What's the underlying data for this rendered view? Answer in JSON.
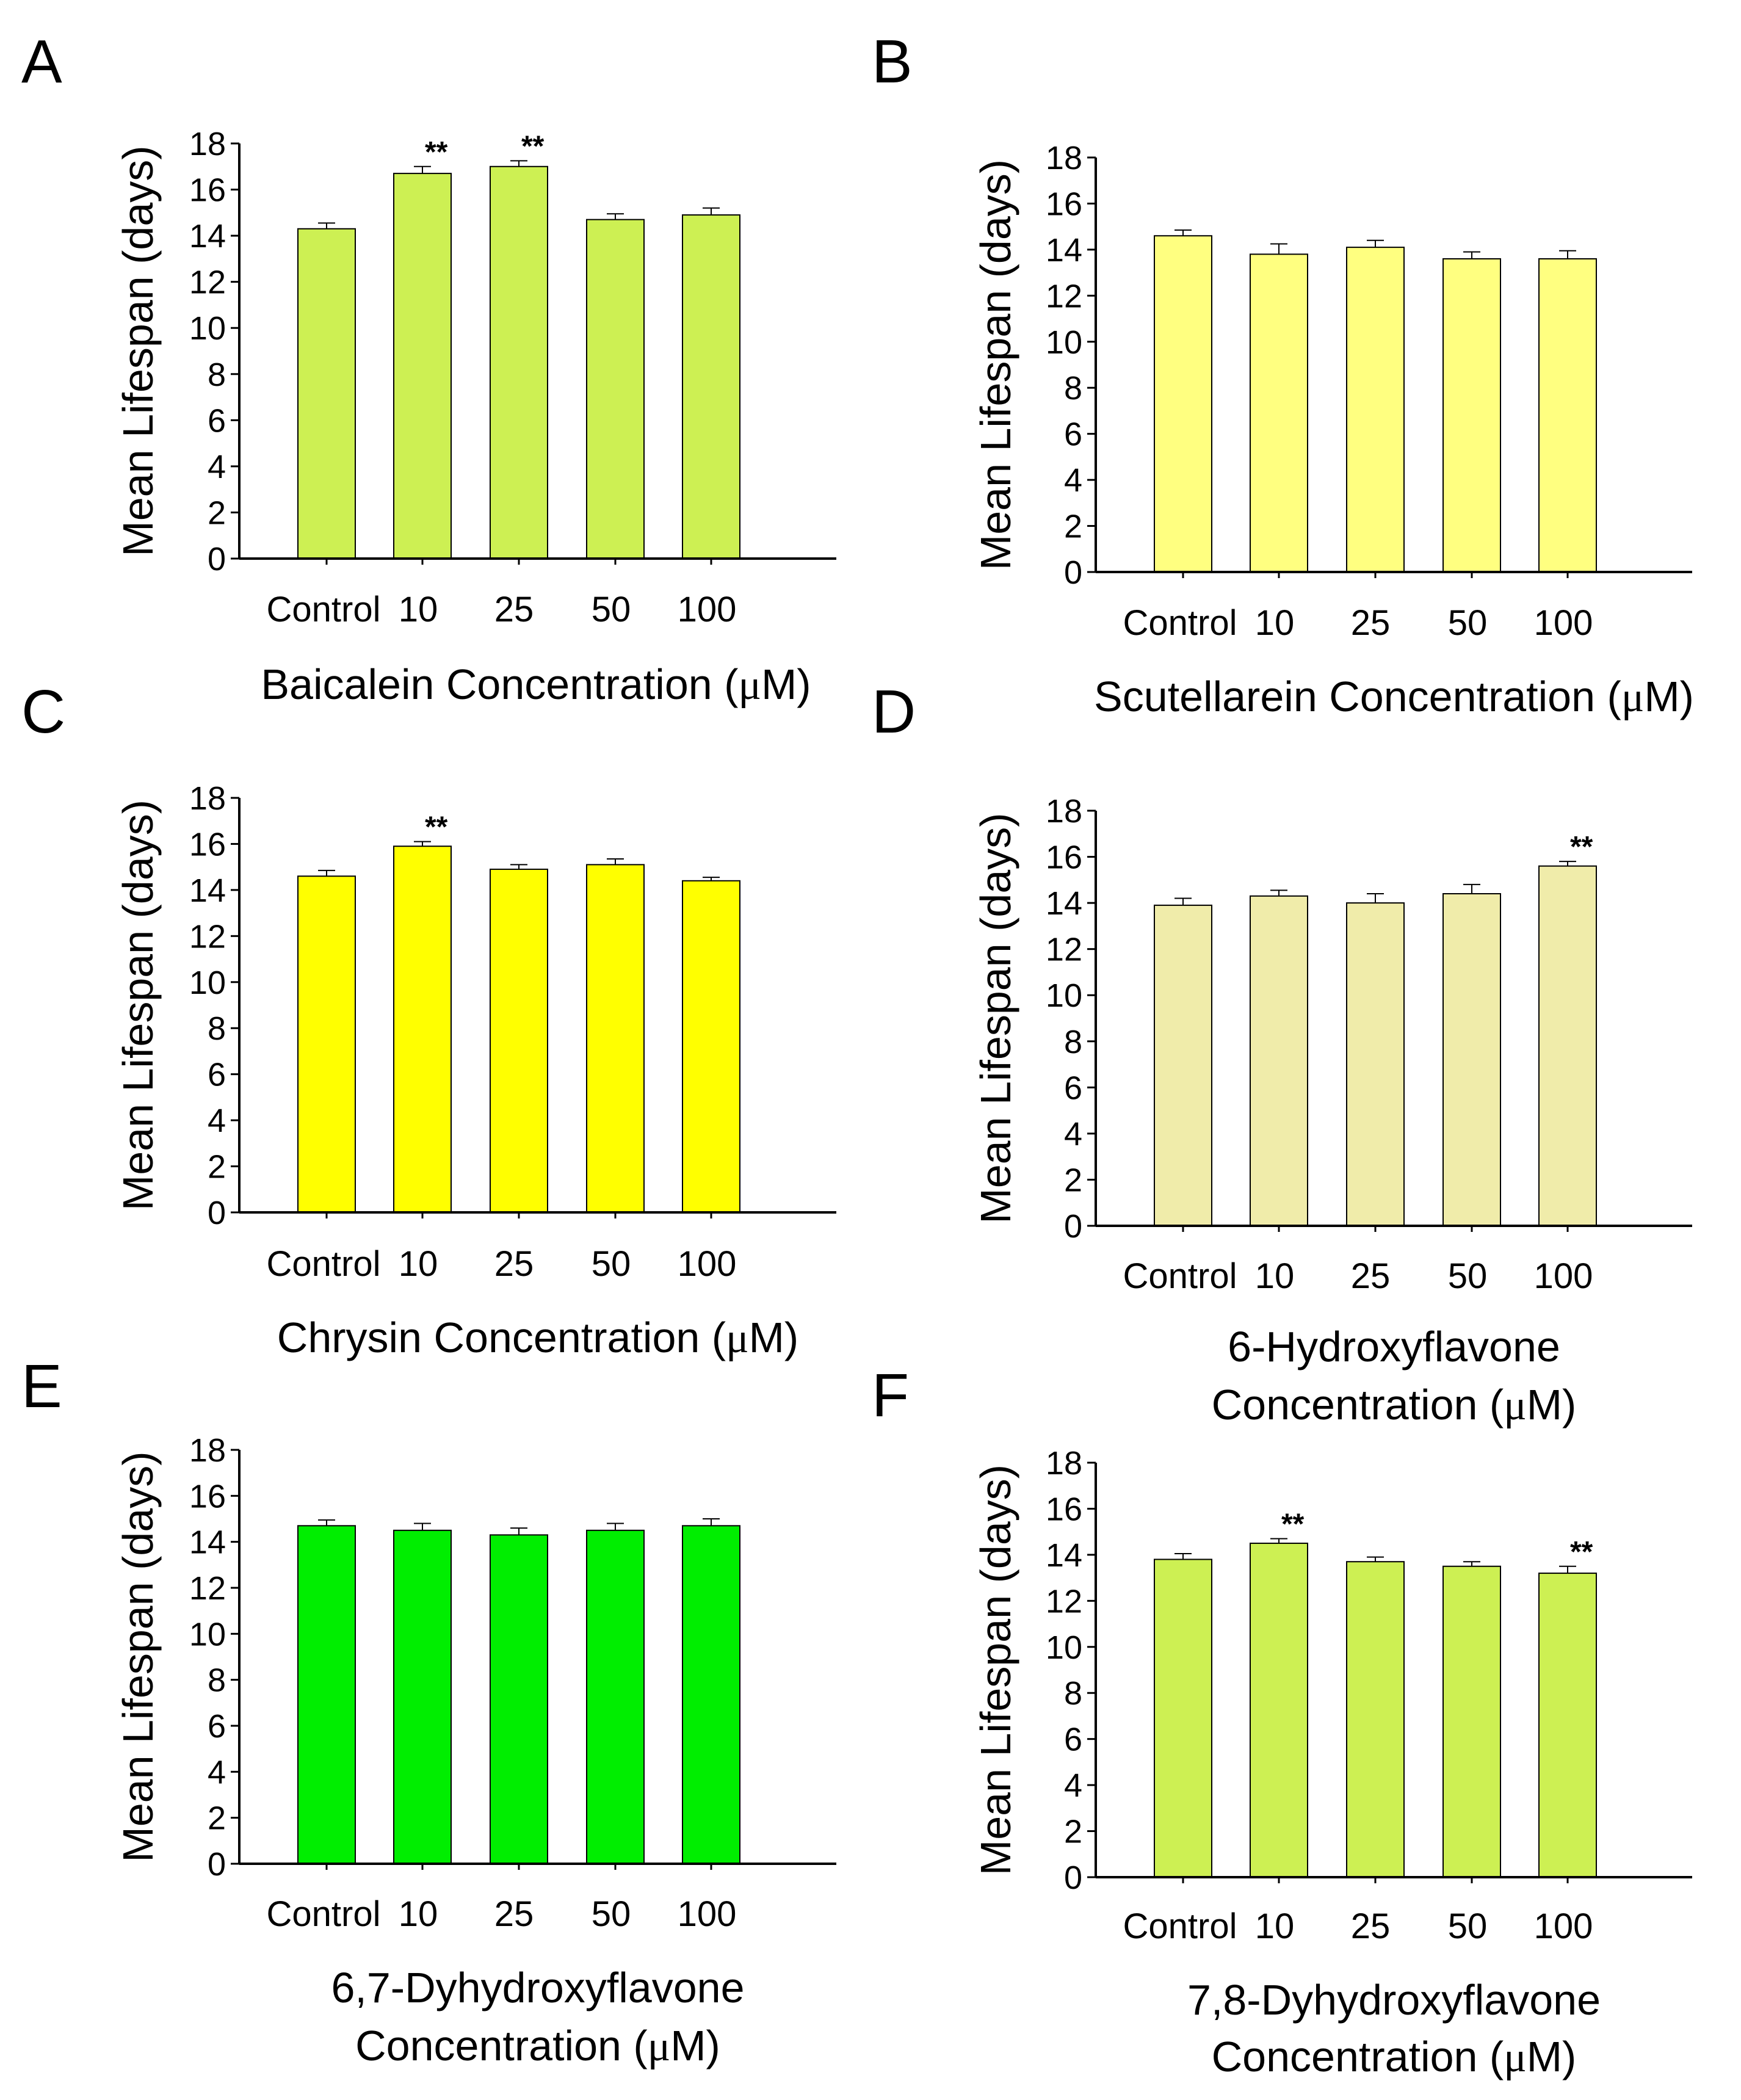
{
  "chart_data": [
    {
      "panel": "A",
      "type": "bar",
      "categories": [
        "Control",
        "10",
        "25",
        "50",
        "100"
      ],
      "values": [
        14.3,
        16.7,
        17.0,
        14.7,
        14.9
      ],
      "errors": [
        0.25,
        0.3,
        0.25,
        0.25,
        0.3
      ],
      "significance": [
        "",
        "**",
        "**",
        "",
        ""
      ],
      "ylabel": "Mean Lifespan (days)",
      "xlabel_lines": [
        "Baicalein Concentration (μM)"
      ],
      "ylim": [
        0,
        18
      ],
      "yticks": [
        "0",
        "2",
        "4",
        "6",
        "8",
        "10",
        "12",
        "14",
        "16",
        "18"
      ],
      "bar_color": "#cdf053"
    },
    {
      "panel": "B",
      "type": "bar",
      "categories": [
        "Control",
        "10",
        "25",
        "50",
        "100"
      ],
      "values": [
        14.6,
        13.8,
        14.1,
        13.6,
        13.6
      ],
      "errors": [
        0.25,
        0.45,
        0.3,
        0.3,
        0.35
      ],
      "significance": [
        "",
        "",
        "",
        "",
        ""
      ],
      "ylabel": "Mean Lifespan (days)",
      "xlabel_lines": [
        "Scutellarein Concentration (μM)"
      ],
      "ylim": [
        0,
        18
      ],
      "yticks": [
        "0",
        "2",
        "4",
        "6",
        "8",
        "10",
        "12",
        "14",
        "16",
        "18"
      ],
      "bar_color": "#ffff80"
    },
    {
      "panel": "C",
      "type": "bar",
      "categories": [
        "Control",
        "10",
        "25",
        "50",
        "100"
      ],
      "values": [
        14.6,
        15.9,
        14.9,
        15.1,
        14.4
      ],
      "errors": [
        0.25,
        0.2,
        0.2,
        0.25,
        0.15
      ],
      "significance": [
        "",
        "**",
        "",
        "",
        ""
      ],
      "ylabel": "Mean Lifespan (days)",
      "xlabel_lines": [
        "Chrysin Concentration (μM)"
      ],
      "ylim": [
        0,
        18
      ],
      "yticks": [
        "0",
        "2",
        "4",
        "6",
        "8",
        "10",
        "12",
        "14",
        "16",
        "18"
      ],
      "bar_color": "#ffff00"
    },
    {
      "panel": "D",
      "type": "bar",
      "categories": [
        "Control",
        "10",
        "25",
        "50",
        "100"
      ],
      "values": [
        13.9,
        14.3,
        14.0,
        14.4,
        15.6
      ],
      "errors": [
        0.3,
        0.25,
        0.4,
        0.4,
        0.2
      ],
      "significance": [
        "",
        "",
        "",
        "",
        "**"
      ],
      "ylabel": "Mean Lifespan (days)",
      "xlabel_lines": [
        "6-Hydroxyflavone",
        "Concentration (μM)"
      ],
      "ylim": [
        0,
        18
      ],
      "yticks": [
        "0",
        "2",
        "4",
        "6",
        "8",
        "10",
        "12",
        "14",
        "16",
        "18"
      ],
      "bar_color": "#f0ecaa"
    },
    {
      "panel": "E",
      "type": "bar",
      "categories": [
        "Control",
        "10",
        "25",
        "50",
        "100"
      ],
      "values": [
        14.7,
        14.5,
        14.3,
        14.5,
        14.7
      ],
      "errors": [
        0.25,
        0.3,
        0.3,
        0.3,
        0.3
      ],
      "significance": [
        "",
        "",
        "",
        "",
        ""
      ],
      "ylabel": "Mean Lifespan (days)",
      "xlabel_lines": [
        "6,7-Dyhydroxyflavone",
        "Concentration (μM)"
      ],
      "ylim": [
        0,
        18
      ],
      "yticks": [
        "0",
        "2",
        "4",
        "6",
        "8",
        "10",
        "12",
        "14",
        "16",
        "18"
      ],
      "bar_color": "#00ee00"
    },
    {
      "panel": "F",
      "type": "bar",
      "categories": [
        "Control",
        "10",
        "25",
        "50",
        "100"
      ],
      "values": [
        13.8,
        14.5,
        13.7,
        13.5,
        13.2
      ],
      "errors": [
        0.25,
        0.2,
        0.2,
        0.2,
        0.3
      ],
      "significance": [
        "",
        "**",
        "",
        "",
        "**"
      ],
      "ylabel": "Mean Lifespan (days)",
      "xlabel_lines": [
        "7,8-Dyhydroxyflavone",
        "Concentration (μM)"
      ],
      "ylim": [
        0,
        18
      ],
      "yticks": [
        "0",
        "2",
        "4",
        "6",
        "8",
        "10",
        "12",
        "14",
        "16",
        "18"
      ],
      "bar_color": "#cdf053"
    }
  ]
}
